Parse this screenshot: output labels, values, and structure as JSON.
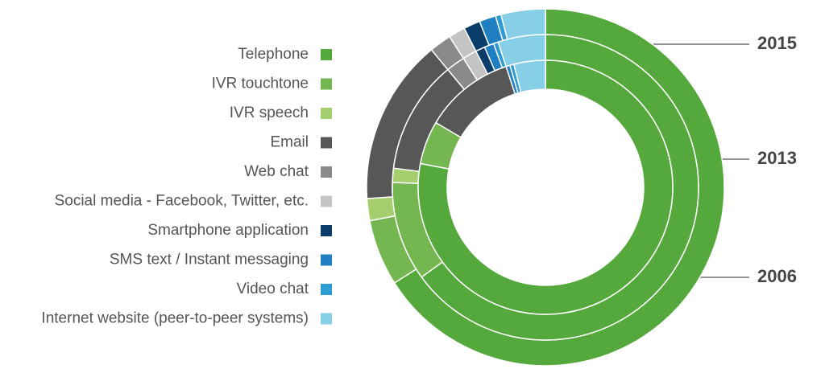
{
  "chart_data": {
    "type": "pie",
    "categories": [
      "Telephone",
      "IVR touchtone",
      "IVR speech",
      "Email",
      "Web chat",
      "Social media - Facebook, Twitter, etc.",
      "Smartphone application",
      "SMS text / Instant messaging",
      "Video chat",
      "Internet website (peer-to-peer systems)"
    ],
    "colors": [
      "#55a93c",
      "#74b64f",
      "#a5cf6f",
      "#575757",
      "#8a8a8a",
      "#c4c4c4",
      "#0b3d6b",
      "#1f7fc0",
      "#2e9bd3",
      "#86cfe6"
    ],
    "series": [
      {
        "name": "2015",
        "values": [
          66,
          6,
          2,
          15,
          2,
          1.5,
          1.5,
          1.5,
          0.5,
          4
        ]
      },
      {
        "name": "2013",
        "values": [
          65,
          10.5,
          1.5,
          12,
          2,
          1.5,
          1,
          1,
          0.5,
          5
        ]
      },
      {
        "name": "2006",
        "values": [
          78,
          5.5,
          0,
          11.5,
          0,
          0,
          0,
          0.5,
          0.5,
          4
        ]
      }
    ]
  }
}
